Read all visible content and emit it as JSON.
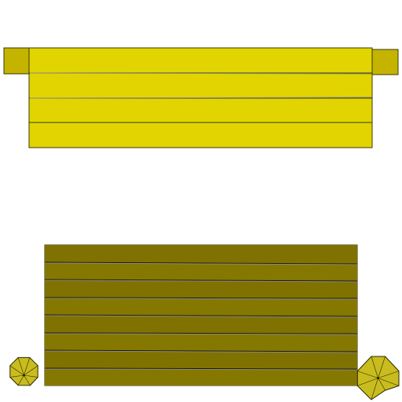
{
  "scene": {
    "colors": {
      "background": "#ffffff",
      "plank_bright": "#e2d400",
      "plank_bright_edge": "#9a9000",
      "end_cap": "#c4b400",
      "plank_olive": "#7f7200",
      "plank_olive_alt": "#857800",
      "seam_gray": "#8a8a8a",
      "seam_dark": "#1a1a00",
      "outline": "#3a3a00",
      "umbrella_fill": "#c9bc1e",
      "umbrella_rib": "#2a2a00"
    },
    "sprites": [
      {
        "name": "yellow-bench-sprite",
        "planks": 4
      },
      {
        "name": "olive-bench-sprite",
        "planks": 8
      },
      {
        "name": "umbrella-left-sprite",
        "ribs": 8
      },
      {
        "name": "umbrella-right-sprite",
        "ribs": 8
      }
    ]
  }
}
